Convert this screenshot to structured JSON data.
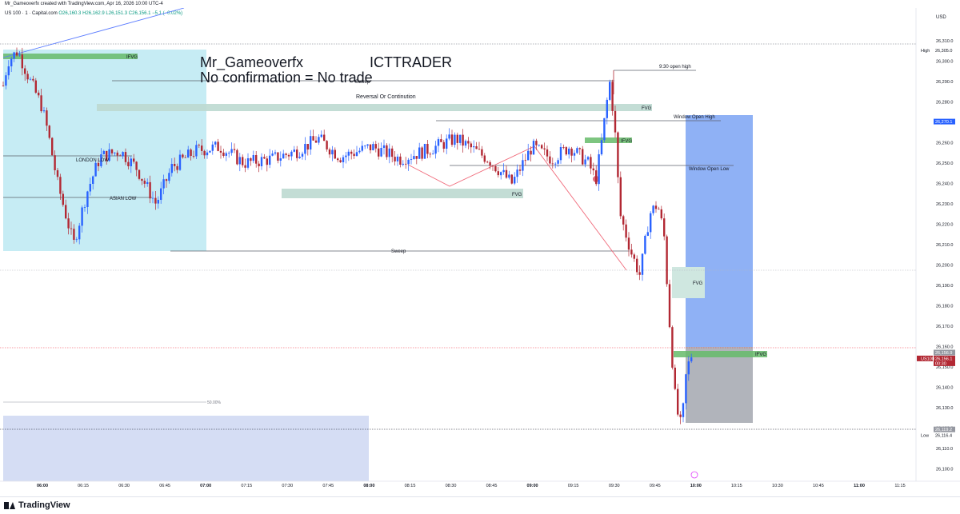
{
  "header": {
    "credit": "Mr_Gameoverfx created with TradingView.com, Apr 16, 2026 10:00 UTC-4",
    "symbol": "US 100 · 1 · Capital.com",
    "ohlc": "O26,160.3  H26,162.9  L26,151.3  C26,156.1  −5.1 (−0.02%)"
  },
  "footer": {
    "brand": "TradingView"
  },
  "chart_data": {
    "type": "candlestick",
    "instrument": "US 100",
    "timeframe": "1",
    "currency": "USD",
    "x_ticks": [
      "06:00",
      "06:15",
      "06:30",
      "06:45",
      "07:00",
      "07:15",
      "07:30",
      "07:45",
      "08:00",
      "08:15",
      "08:30",
      "08:45",
      "09:00",
      "09:15",
      "09:30",
      "09:45",
      "10:00",
      "10:15",
      "10:30",
      "10:45",
      "11:00",
      "11:15"
    ],
    "bold_ticks": [
      "06:00",
      "07:00",
      "08:00",
      "09:00",
      "10:00",
      "11:00"
    ],
    "y_ticks": [
      26310,
      26300,
      26290,
      26280,
      26270,
      26260,
      26250,
      26240,
      26230,
      26220,
      26210,
      26200,
      26190,
      26180,
      26170,
      26160,
      26150,
      26140,
      26130,
      26120,
      26110,
      26100
    ],
    "y_tick_labels": [
      "26,310.0",
      "26,300.0",
      "26,290.0",
      "26,280.0",
      "26,270.0",
      "26,260.0",
      "26,250.0",
      "26,240.0",
      "26,230.0",
      "26,220.0",
      "26,210.0",
      "26,200.0",
      "26,190.0",
      "26,180.0",
      "26,170.0",
      "26,160.0",
      "26,150.0",
      "26,140.0",
      "26,130.0",
      "26,120.0",
      "26,110.0",
      "26,100.0"
    ],
    "ylim": [
      26094,
      26326
    ],
    "price_markers": [
      {
        "label": "High",
        "value": "26,305.0",
        "y": 26305.0,
        "kind": "plain"
      },
      {
        "label": "",
        "value": "26,270.1",
        "y": 26270.1,
        "kind": "blue"
      },
      {
        "label": "",
        "value": "26,156.9",
        "y": 26156.9,
        "kind": "grey"
      },
      {
        "label": "US100",
        "value": "26,156.1",
        "sub": "00:30",
        "y": 26154.0,
        "kind": "red"
      },
      {
        "label": "",
        "value": "26,119.2",
        "y": 26119.2,
        "kind": "grey"
      },
      {
        "label": "Low",
        "value": "26,116.4",
        "y": 26116.4,
        "kind": "plain"
      }
    ],
    "text_annotations": {
      "author": "Mr_Gameoverfx",
      "tag": "ICTTRADER",
      "rule": "No confirmation = No trade",
      "sweep_top": "Sweep",
      "reversal": "Reversal Or Continution",
      "open_high": "9:30 open high",
      "window_high": "Window Open High",
      "window_low": "Window Open Low",
      "london_low": "LONDON LOW",
      "asian_low": "ASIAN LOW",
      "sweep_bottom": "Sweep",
      "fib": "50.00%"
    },
    "zones": [
      {
        "label": "IFVG",
        "color": "#4caf50"
      },
      {
        "label": "FVG",
        "color": "#9cc5b8"
      },
      {
        "label": "FVG",
        "color": "#9cc5b8"
      },
      {
        "label": "IFVG",
        "color": "#4caf50"
      },
      {
        "label": "FVG",
        "color": "#9cc5b8"
      },
      {
        "label": "IFVG",
        "color": "#4caf50"
      }
    ],
    "colors": {
      "up": "#2962ff",
      "down": "#b22833",
      "session": "#c6ecf4",
      "blue_box": "#8fb1f5",
      "grey_box": "#b1b4bb",
      "lower_box": "#d5ddf4"
    }
  }
}
